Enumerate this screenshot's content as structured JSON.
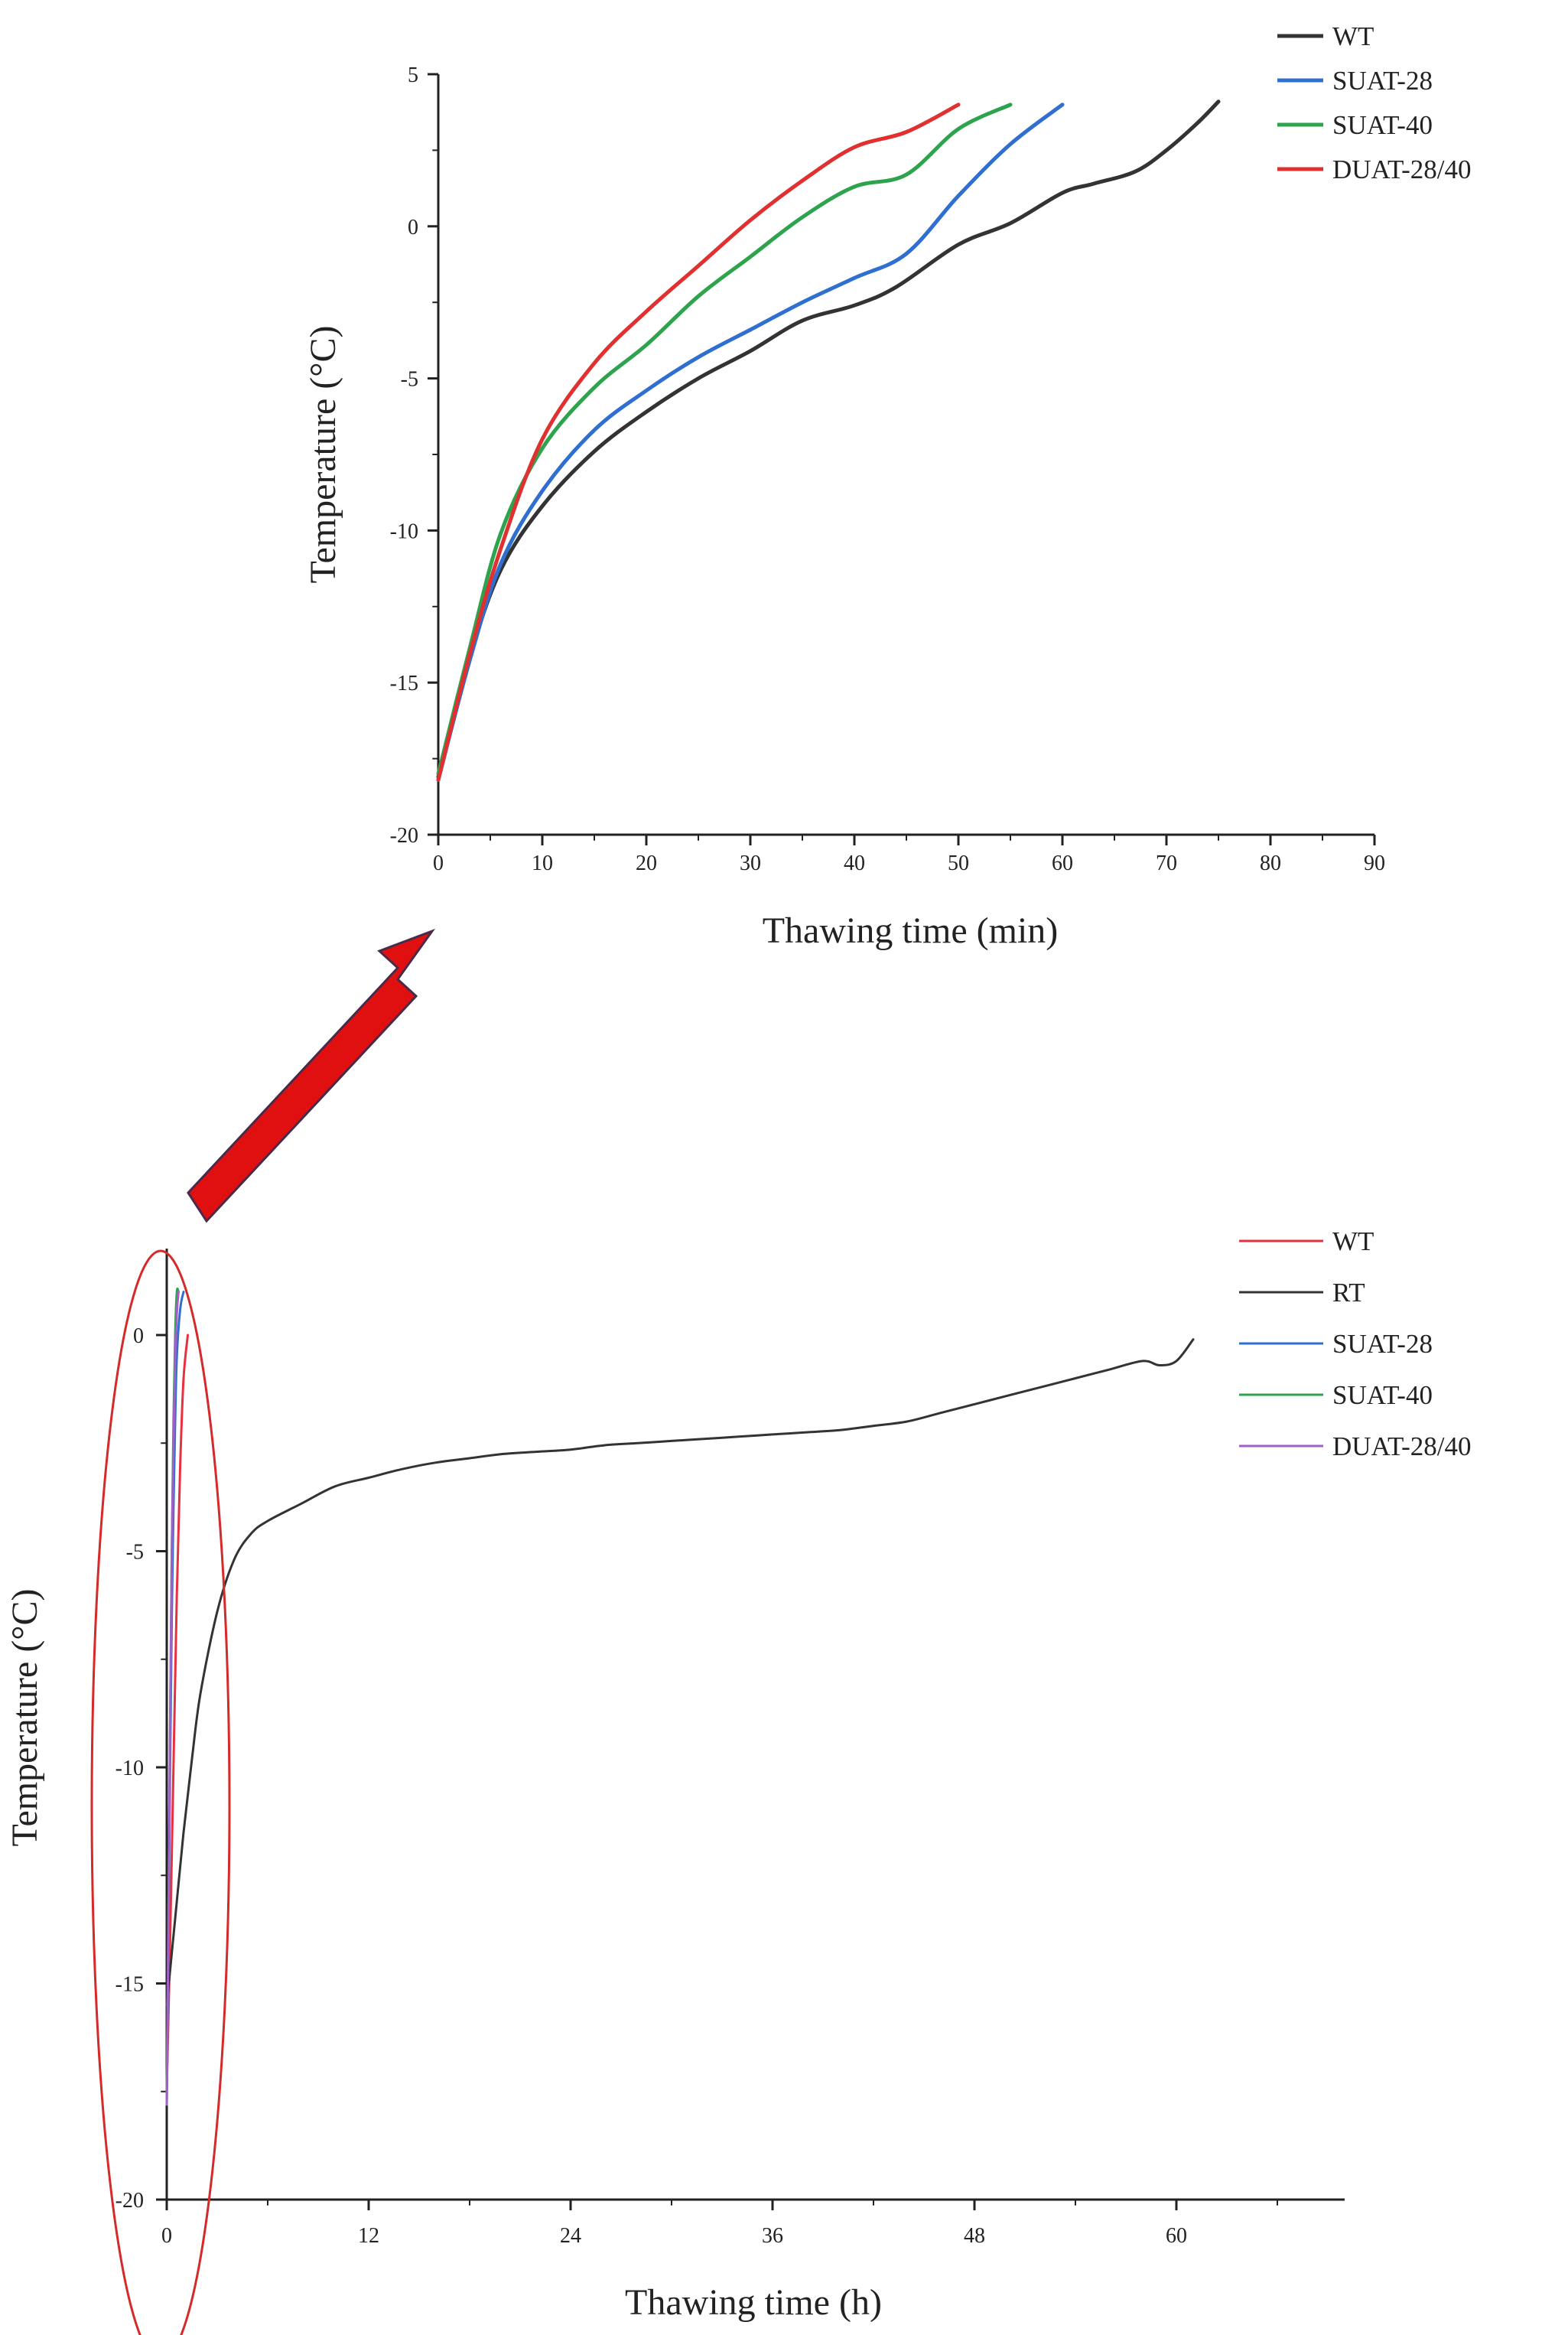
{
  "chart_data": [
    {
      "type": "line",
      "xlabel": "Thawing time (min)",
      "ylabel": "Temperature (°C)",
      "xlim": [
        0,
        90
      ],
      "ylim": [
        -20,
        5
      ],
      "xticks": [
        0,
        10,
        20,
        30,
        40,
        50,
        60,
        70,
        80,
        90
      ],
      "yticks": [
        -20,
        -15,
        -10,
        -5,
        0,
        5
      ],
      "grid": false,
      "legend_position": "top-right",
      "series": [
        {
          "name": "WT",
          "color": "#333333",
          "x": [
            0,
            3,
            6,
            10,
            15,
            20,
            25,
            30,
            35,
            40,
            44,
            50,
            55,
            60,
            63,
            67,
            70,
            73,
            75
          ],
          "y": [
            -18.1,
            -14.2,
            -11.3,
            -9.2,
            -7.4,
            -6.1,
            -5.0,
            -4.1,
            -3.1,
            -2.6,
            -2.0,
            -0.6,
            0.1,
            1.1,
            1.4,
            1.8,
            2.5,
            3.4,
            4.1
          ]
        },
        {
          "name": "SUAT-28",
          "color": "#2f6fd0",
          "x": [
            0,
            3,
            6,
            10,
            15,
            20,
            25,
            30,
            35,
            40,
            45,
            50,
            55,
            60
          ],
          "y": [
            -18.2,
            -14.3,
            -11.1,
            -8.7,
            -6.7,
            -5.4,
            -4.3,
            -3.4,
            -2.5,
            -1.7,
            -0.9,
            1.0,
            2.7,
            4.0
          ]
        },
        {
          "name": "SUAT-40",
          "color": "#2ea34d",
          "x": [
            0,
            3,
            6,
            10,
            15,
            20,
            25,
            30,
            35,
            40,
            45,
            50,
            55
          ],
          "y": [
            -18.0,
            -13.9,
            -10.1,
            -7.3,
            -5.3,
            -3.9,
            -2.3,
            -1.0,
            0.3,
            1.3,
            1.7,
            3.2,
            4.0
          ]
        },
        {
          "name": "DUAT-28/40",
          "color": "#e03030",
          "x": [
            0,
            3,
            6,
            10,
            15,
            20,
            25,
            30,
            35,
            40,
            45,
            50
          ],
          "y": [
            -18.2,
            -14.1,
            -10.6,
            -7.0,
            -4.5,
            -2.8,
            -1.3,
            0.2,
            1.5,
            2.6,
            3.1,
            4.0
          ]
        }
      ]
    },
    {
      "type": "line",
      "xlabel": "Thawing time (h)",
      "ylabel": "Temperature (°C)",
      "xlim": [
        0,
        70
      ],
      "ylim": [
        -20,
        2
      ],
      "xticks": [
        0,
        12,
        24,
        36,
        48,
        60
      ],
      "yticks": [
        -20,
        -15,
        -10,
        -5,
        0
      ],
      "grid": false,
      "legend_position": "top-right",
      "annotation": "red ellipse highlighting the first hour, with an arrow pointing to the zoomed-in chart",
      "series": [
        {
          "name": "WT",
          "color": "#e83040",
          "x": [
            0,
            0.2,
            0.4,
            0.6,
            0.8,
            1.0,
            1.25
          ],
          "y": [
            -17.5,
            -14.0,
            -10.0,
            -6.0,
            -3.0,
            -1.0,
            0.0
          ]
        },
        {
          "name": "RT",
          "color": "#333333",
          "x": [
            0,
            0.5,
            1,
            1.5,
            2,
            3,
            4,
            5,
            6,
            8,
            10,
            12,
            14,
            16,
            18,
            20,
            22,
            24,
            26,
            28,
            30,
            32,
            34,
            36,
            38,
            40,
            42,
            44,
            46,
            48,
            50,
            52,
            54,
            56,
            58,
            59,
            60,
            61
          ],
          "y": [
            -15.5,
            -13.5,
            -11.5,
            -9.8,
            -8.3,
            -6.4,
            -5.2,
            -4.6,
            -4.3,
            -3.9,
            -3.5,
            -3.3,
            -3.1,
            -2.95,
            -2.85,
            -2.75,
            -2.7,
            -2.65,
            -2.55,
            -2.5,
            -2.45,
            -2.4,
            -2.35,
            -2.3,
            -2.25,
            -2.2,
            -2.1,
            -2.0,
            -1.8,
            -1.6,
            -1.4,
            -1.2,
            -1.0,
            -0.8,
            -0.6,
            -0.7,
            -0.6,
            -0.1
          ]
        },
        {
          "name": "SUAT-28",
          "color": "#2f6fd0",
          "x": [
            0,
            0.1,
            0.2,
            0.3,
            0.4,
            0.5,
            0.6,
            0.8,
            1.0
          ],
          "y": [
            -17.8,
            -14.0,
            -10.0,
            -6.5,
            -4.0,
            -2.0,
            -0.5,
            0.6,
            1.0
          ]
        },
        {
          "name": "SUAT-40",
          "color": "#2ea34d",
          "x": [
            0,
            0.1,
            0.2,
            0.3,
            0.4,
            0.5,
            0.6,
            0.7
          ],
          "y": [
            -17.8,
            -13.5,
            -9.0,
            -5.0,
            -2.0,
            0.0,
            1.0,
            1.0
          ]
        },
        {
          "name": "DUAT-28/40",
          "color": "#a060c8",
          "x": [
            0,
            0.1,
            0.2,
            0.3,
            0.4,
            0.5,
            0.6,
            0.7
          ],
          "y": [
            -17.8,
            -13.5,
            -9.0,
            -5.0,
            -2.5,
            -0.5,
            0.5,
            1.0
          ]
        }
      ]
    }
  ]
}
